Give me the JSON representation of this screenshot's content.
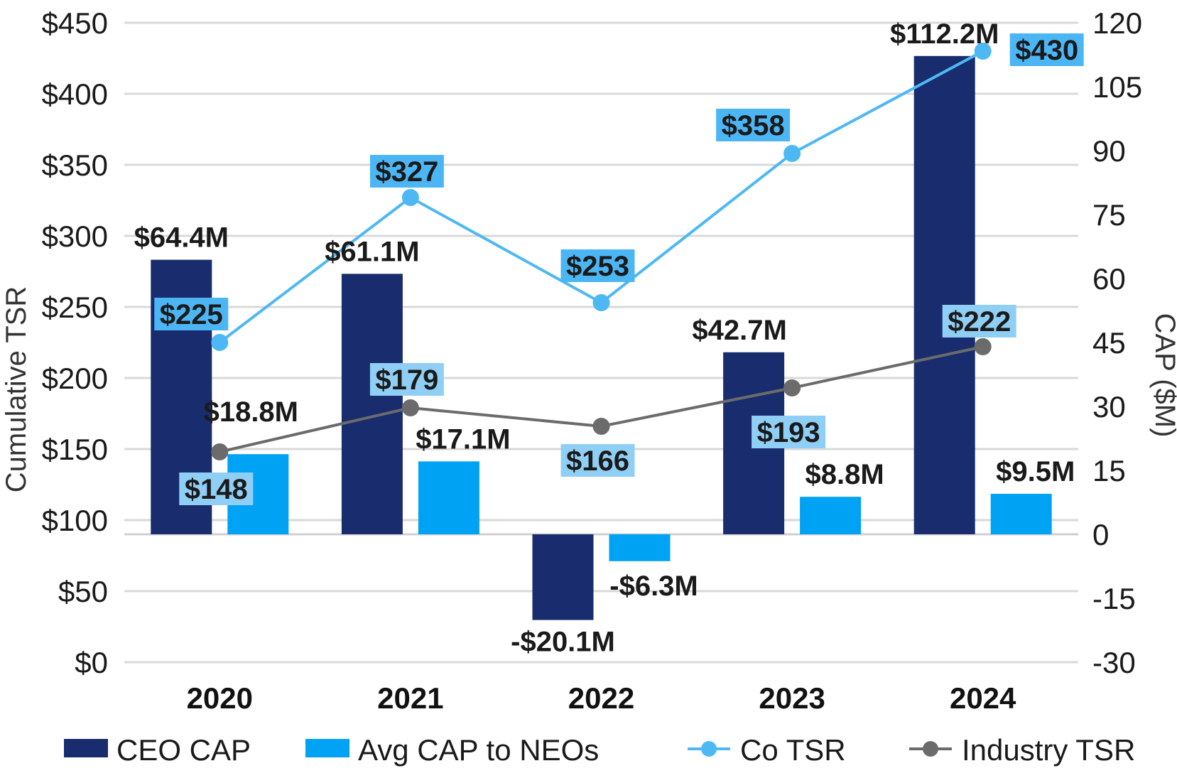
{
  "chart_data": {
    "type": "bar+line",
    "categories": [
      "2020",
      "2021",
      "2022",
      "2023",
      "2024"
    ],
    "left_axis": {
      "title": "Cumulative TSR",
      "range": [
        0,
        450
      ],
      "ticks": [
        "$0",
        "$50",
        "$100",
        "$150",
        "$200",
        "$250",
        "$300",
        "$350",
        "$400",
        "$450"
      ]
    },
    "right_axis": {
      "title": "CAP ($M)",
      "range": [
        -30,
        120
      ],
      "ticks": [
        "-30",
        "-15",
        "0",
        "15",
        "30",
        "45",
        "60",
        "75",
        "90",
        "105",
        "120"
      ]
    },
    "bar_series": [
      {
        "name": "CEO CAP",
        "axis": "right",
        "color": "#182c6e",
        "values": [
          64.4,
          61.1,
          -20.1,
          42.7,
          112.2
        ],
        "labels": [
          "$64.4M",
          "$61.1M",
          "-$20.1M",
          "$42.7M",
          "$112.2M"
        ]
      },
      {
        "name": "Avg CAP to NEOs",
        "axis": "right",
        "color": "#00a2f4",
        "values": [
          18.8,
          17.1,
          -6.3,
          8.8,
          9.5
        ],
        "labels": [
          "$18.8M",
          "$17.1M",
          "-$6.3M",
          "$8.8M",
          "$9.5M"
        ]
      }
    ],
    "line_series": [
      {
        "name": "Co TSR",
        "axis": "left",
        "color": "#4db8f4",
        "label_bg": "#4cb6f5",
        "values": [
          225,
          327,
          253,
          358,
          430
        ],
        "labels": [
          "$225",
          "$327",
          "$253",
          "$358",
          "$430"
        ]
      },
      {
        "name": "Industry TSR",
        "axis": "left",
        "color": "#6b6b6b",
        "label_bg": "#90cff5",
        "values": [
          148,
          179,
          166,
          193,
          222
        ],
        "labels": [
          "$148",
          "$179",
          "$166",
          "$193",
          "$222"
        ]
      }
    ],
    "legend": [
      "CEO CAP",
      "Avg CAP to NEOs",
      "Co TSR",
      "Industry TSR"
    ],
    "legend_position": "bottom",
    "grid": true
  }
}
